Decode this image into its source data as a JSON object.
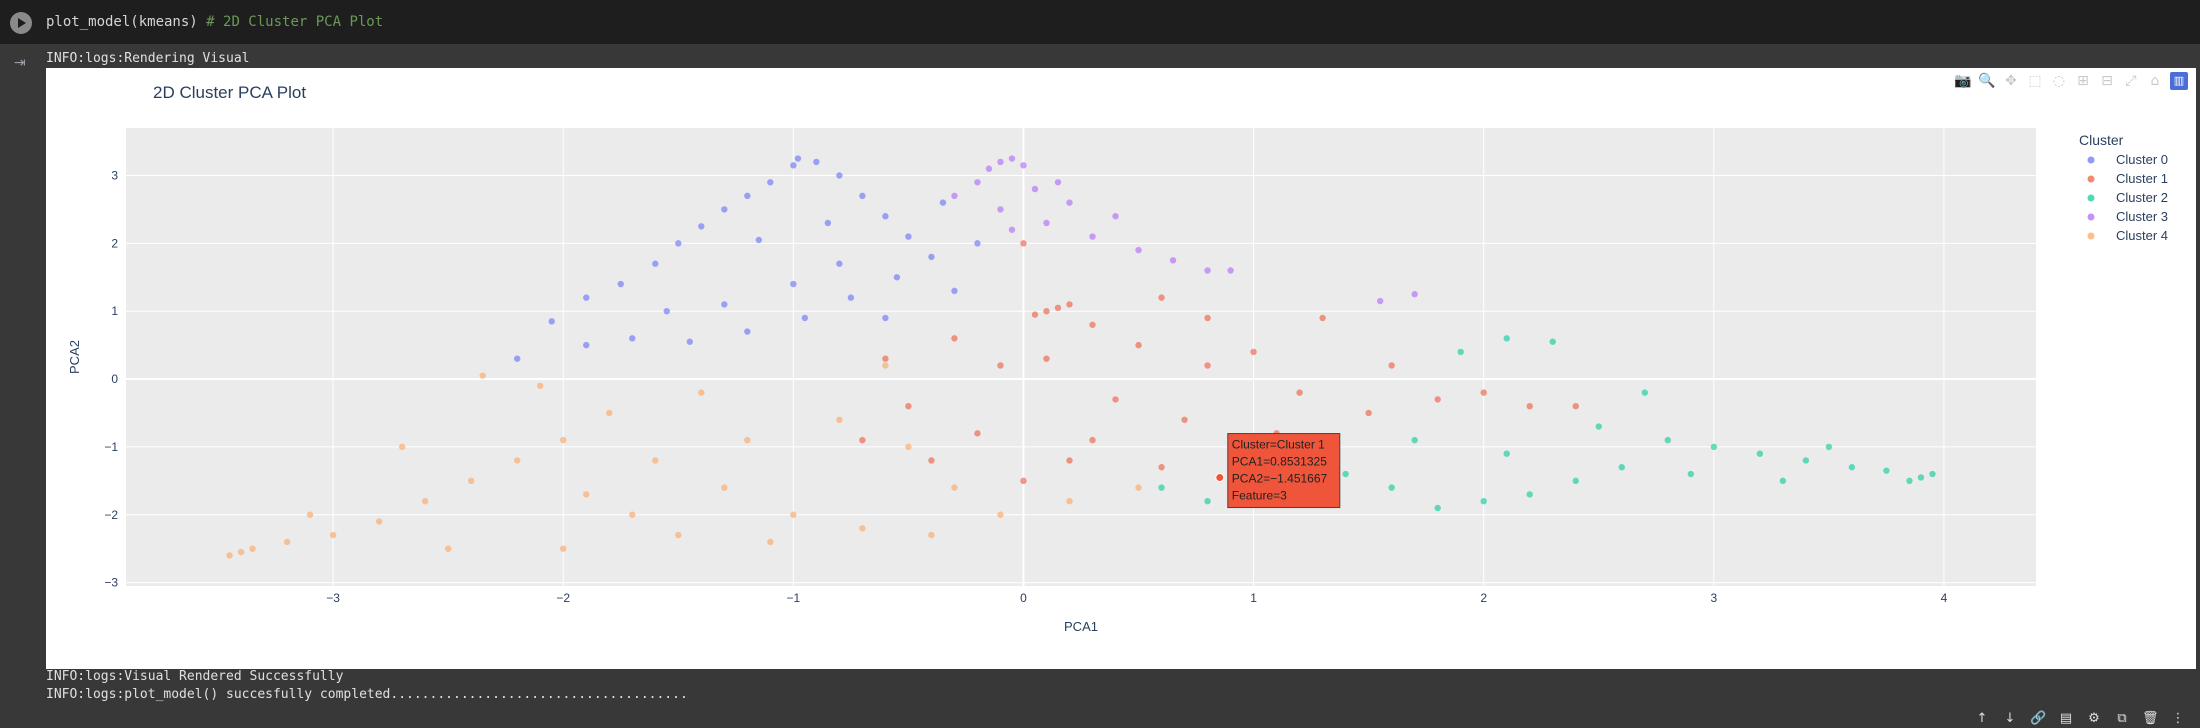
{
  "cell": {
    "code": "plot_model(kmeans)",
    "comment": "# 2D Cluster PCA Plot"
  },
  "logs": {
    "before": "INFO:logs:Rendering Visual",
    "after1": "INFO:logs:Visual Rendered Successfully",
    "after2": "INFO:logs:plot_model() succesfully completed......................................"
  },
  "modebar": [
    "camera-icon",
    "zoom-icon",
    "pan-icon",
    "box-select-icon",
    "lasso-select-icon",
    "zoom-in-icon",
    "zoom-out-icon",
    "autoscale-icon",
    "reset-axes-icon",
    "plotly-logo-icon"
  ],
  "chart_data": {
    "type": "scatter",
    "title": "2D Cluster PCA Plot",
    "xlabel": "PCA1",
    "ylabel": "PCA2",
    "xlim": [
      -3.9,
      4.4
    ],
    "ylim": [
      -3.05,
      3.7
    ],
    "xticks": [
      -3,
      -2,
      -1,
      0,
      1,
      2,
      3,
      4
    ],
    "yticks": [
      -3,
      -2,
      -1,
      0,
      1,
      2,
      3
    ],
    "xtick_labels": [
      "−3",
      "−2",
      "−1",
      "0",
      "1",
      "2",
      "3",
      "4"
    ],
    "ytick_labels": [
      "−3",
      "−2",
      "−1",
      "0",
      "1",
      "2",
      "3"
    ],
    "grid": true,
    "legend_title": "Cluster",
    "legend_placement": "top-right",
    "series": [
      {
        "name": "Cluster 0",
        "color": "#636efa",
        "points": [
          [
            -2.2,
            0.3
          ],
          [
            -2.05,
            0.85
          ],
          [
            -1.9,
            1.2
          ],
          [
            -1.75,
            1.4
          ],
          [
            -1.6,
            1.7
          ],
          [
            -1.5,
            2.0
          ],
          [
            -1.4,
            2.25
          ],
          [
            -1.3,
            2.5
          ],
          [
            -1.2,
            2.7
          ],
          [
            -1.1,
            2.9
          ],
          [
            -1.0,
            3.15
          ],
          [
            -0.98,
            3.25
          ],
          [
            -0.9,
            3.2
          ],
          [
            -0.8,
            3.0
          ],
          [
            -0.7,
            2.7
          ],
          [
            -0.6,
            2.4
          ],
          [
            -0.5,
            2.1
          ],
          [
            -0.4,
            1.8
          ],
          [
            -0.55,
            1.5
          ],
          [
            -0.75,
            1.2
          ],
          [
            -0.95,
            0.9
          ],
          [
            -1.2,
            0.7
          ],
          [
            -1.45,
            0.55
          ],
          [
            -1.7,
            0.6
          ],
          [
            -1.9,
            0.5
          ],
          [
            -1.3,
            1.1
          ],
          [
            -1.0,
            1.4
          ],
          [
            -0.8,
            1.7
          ],
          [
            -0.6,
            0.9
          ],
          [
            -0.3,
            1.3
          ],
          [
            -0.35,
            2.6
          ],
          [
            -0.2,
            2.0
          ],
          [
            -1.55,
            1.0
          ],
          [
            -0.85,
            2.3
          ],
          [
            -1.15,
            2.05
          ]
        ]
      },
      {
        "name": "Cluster 1",
        "color": "#ef553b",
        "points": [
          [
            0.1,
            1.0
          ],
          [
            0.15,
            1.05
          ],
          [
            0.05,
            0.95
          ],
          [
            0.2,
            1.1
          ],
          [
            0.0,
            2.0
          ],
          [
            0.3,
            0.8
          ],
          [
            0.5,
            0.5
          ],
          [
            0.8,
            0.2
          ],
          [
            1.2,
            -0.2
          ],
          [
            1.5,
            -0.5
          ],
          [
            1.8,
            -0.3
          ],
          [
            2.2,
            -0.4
          ],
          [
            2.4,
            -0.4
          ],
          [
            0.9,
            -1.0
          ],
          [
            0.6,
            -1.3
          ],
          [
            0.2,
            -1.2
          ],
          [
            -0.2,
            -0.8
          ],
          [
            -0.5,
            -0.4
          ],
          [
            -0.6,
            0.3
          ],
          [
            -0.3,
            0.6
          ],
          [
            0.1,
            0.3
          ],
          [
            0.4,
            -0.3
          ],
          [
            0.7,
            -0.6
          ],
          [
            1.0,
            0.4
          ],
          [
            1.3,
            0.9
          ],
          [
            0.6,
            1.2
          ],
          [
            -0.1,
            0.2
          ],
          [
            -0.4,
            -1.2
          ],
          [
            0.0,
            -1.5
          ],
          [
            1.1,
            -0.8
          ],
          [
            1.6,
            0.2
          ],
          [
            -0.7,
            -0.9
          ],
          [
            0.3,
            -0.9
          ],
          [
            0.8,
            0.9
          ],
          [
            2.0,
            -0.2
          ]
        ]
      },
      {
        "name": "Cluster 2",
        "color": "#00cc96",
        "points": [
          [
            3.9,
            -1.45
          ],
          [
            3.85,
            -1.5
          ],
          [
            3.95,
            -1.4
          ],
          [
            3.75,
            -1.35
          ],
          [
            3.6,
            -1.3
          ],
          [
            3.4,
            -1.2
          ],
          [
            3.2,
            -1.1
          ],
          [
            3.0,
            -1.0
          ],
          [
            2.8,
            -0.9
          ],
          [
            2.6,
            -1.3
          ],
          [
            2.4,
            -1.5
          ],
          [
            2.2,
            -1.7
          ],
          [
            2.0,
            -1.8
          ],
          [
            1.8,
            -1.9
          ],
          [
            1.6,
            -1.6
          ],
          [
            1.4,
            -1.4
          ],
          [
            1.2,
            -1.2
          ],
          [
            1.0,
            -1.4
          ],
          [
            0.8,
            -1.8
          ],
          [
            0.6,
            -1.6
          ],
          [
            2.3,
            0.55
          ],
          [
            2.1,
            0.6
          ],
          [
            2.5,
            -0.7
          ],
          [
            2.9,
            -1.4
          ],
          [
            3.3,
            -1.5
          ],
          [
            1.7,
            -0.9
          ],
          [
            2.1,
            -1.1
          ],
          [
            2.7,
            -0.2
          ],
          [
            1.9,
            0.4
          ],
          [
            3.5,
            -1.0
          ]
        ]
      },
      {
        "name": "Cluster 3",
        "color": "#ab63fa",
        "points": [
          [
            -0.1,
            3.2
          ],
          [
            -0.05,
            3.25
          ],
          [
            -0.15,
            3.1
          ],
          [
            0.0,
            3.15
          ],
          [
            -0.2,
            2.9
          ],
          [
            0.05,
            2.8
          ],
          [
            -0.1,
            2.5
          ],
          [
            0.1,
            2.3
          ],
          [
            0.3,
            2.1
          ],
          [
            0.5,
            1.9
          ],
          [
            0.8,
            1.6
          ],
          [
            0.9,
            1.6
          ],
          [
            1.55,
            1.15
          ],
          [
            1.7,
            1.25
          ],
          [
            0.2,
            2.6
          ],
          [
            -0.3,
            2.7
          ],
          [
            0.4,
            2.4
          ],
          [
            0.65,
            1.75
          ],
          [
            -0.05,
            2.2
          ],
          [
            0.15,
            2.9
          ]
        ]
      },
      {
        "name": "Cluster 4",
        "color": "#ffa15a",
        "points": [
          [
            -3.45,
            -2.6
          ],
          [
            -3.4,
            -2.55
          ],
          [
            -3.35,
            -2.5
          ],
          [
            -3.2,
            -2.4
          ],
          [
            -3.0,
            -2.3
          ],
          [
            -2.8,
            -2.1
          ],
          [
            -2.6,
            -1.8
          ],
          [
            -2.4,
            -1.5
          ],
          [
            -2.2,
            -1.2
          ],
          [
            -2.0,
            -0.9
          ],
          [
            -1.8,
            -0.5
          ],
          [
            -2.35,
            0.05
          ],
          [
            -2.1,
            -0.1
          ],
          [
            -1.6,
            -1.2
          ],
          [
            -1.3,
            -1.6
          ],
          [
            -1.0,
            -2.0
          ],
          [
            -0.7,
            -2.2
          ],
          [
            -0.4,
            -2.3
          ],
          [
            -0.1,
            -2.0
          ],
          [
            0.2,
            -1.8
          ],
          [
            0.5,
            -1.6
          ],
          [
            -1.5,
            -2.3
          ],
          [
            -2.0,
            -2.5
          ],
          [
            -2.5,
            -2.5
          ],
          [
            -1.2,
            -0.9
          ],
          [
            -0.8,
            -0.6
          ],
          [
            -0.5,
            -1.0
          ],
          [
            -1.4,
            -0.2
          ],
          [
            -1.9,
            -1.7
          ],
          [
            -2.7,
            -1.0
          ],
          [
            -1.1,
            -2.4
          ],
          [
            -0.3,
            -1.6
          ],
          [
            -3.1,
            -2.0
          ],
          [
            -1.7,
            -2.0
          ],
          [
            -0.6,
            0.2
          ]
        ]
      }
    ],
    "hover": {
      "lines": [
        "Cluster=Cluster 1",
        "PCA1=0.8531325",
        "PCA2=−1.451667",
        "Feature=3"
      ],
      "x": 0.8531325,
      "y": -1.451667,
      "color": "#ef553b"
    }
  }
}
